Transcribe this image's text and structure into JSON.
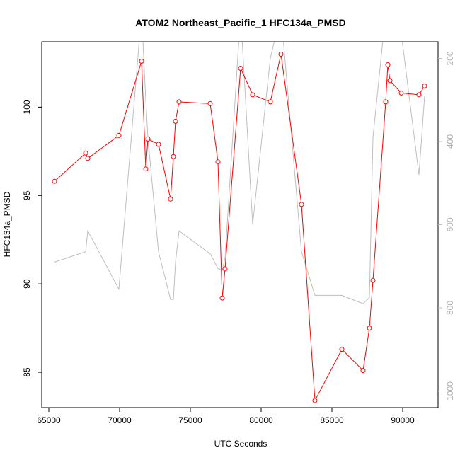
{
  "chart_data": {
    "type": "line",
    "title": "ATOM2 Northeast_Pacific_1 HFC134a_PMSD",
    "xlabel": "UTC Seconds",
    "ylabel": "HFC134a_PMSD",
    "xlim": [
      64500,
      92500
    ],
    "ylim": [
      83,
      103.7
    ],
    "xticks": [
      65000,
      70000,
      75000,
      80000,
      85000,
      90000
    ],
    "yticks": [
      85,
      90,
      95,
      100
    ],
    "y2lim": [
      1040,
      160
    ],
    "y2ticks": [
      200,
      400,
      600,
      800,
      1000
    ],
    "grid": false,
    "legend": "none",
    "colors": {
      "primary": "#ff0000",
      "secondary": "#bebebe",
      "axis": "#000000"
    },
    "series": [
      {
        "axis": "left",
        "marker": "open-circle",
        "x": [
          65400,
          67600,
          67750,
          69950,
          71550,
          71850,
          72000,
          72750,
          73600,
          73800,
          73950,
          74200,
          76400,
          76950,
          77250,
          77450,
          78550,
          79400,
          80650,
          81400,
          82850,
          83800,
          85700,
          87200,
          87650,
          87900,
          88800,
          88950,
          89100,
          89900,
          91150,
          91550
        ],
        "y": [
          95.8,
          97.4,
          97.1,
          98.4,
          102.6,
          96.5,
          98.2,
          97.9,
          94.8,
          97.2,
          99.2,
          100.3,
          100.2,
          96.9,
          89.2,
          90.85,
          102.2,
          100.7,
          100.3,
          103.0,
          94.5,
          83.4,
          86.3,
          85.1,
          87.5,
          90.2,
          100.3,
          102.4,
          101.5,
          100.8,
          100.7,
          101.2
        ]
      },
      {
        "axis": "right",
        "marker": "none",
        "x": [
          65400,
          67600,
          67750,
          69950,
          71550,
          71850,
          72000,
          72750,
          73600,
          73800,
          73950,
          74200,
          76400,
          76950,
          77250,
          77450,
          78550,
          79400,
          80650,
          81400,
          82850,
          83800,
          85700,
          87200,
          87650,
          87900,
          88800,
          88950,
          89100,
          89900,
          91150,
          91550
        ],
        "y": [
          690,
          665,
          615,
          755,
          90,
          300,
          390,
          665,
          780,
          780,
          690,
          615,
          670,
          705,
          710,
          680,
          90,
          600,
          200,
          90,
          665,
          770,
          770,
          790,
          775,
          390,
          90,
          90,
          90,
          140,
          480,
          290
        ]
      }
    ]
  }
}
